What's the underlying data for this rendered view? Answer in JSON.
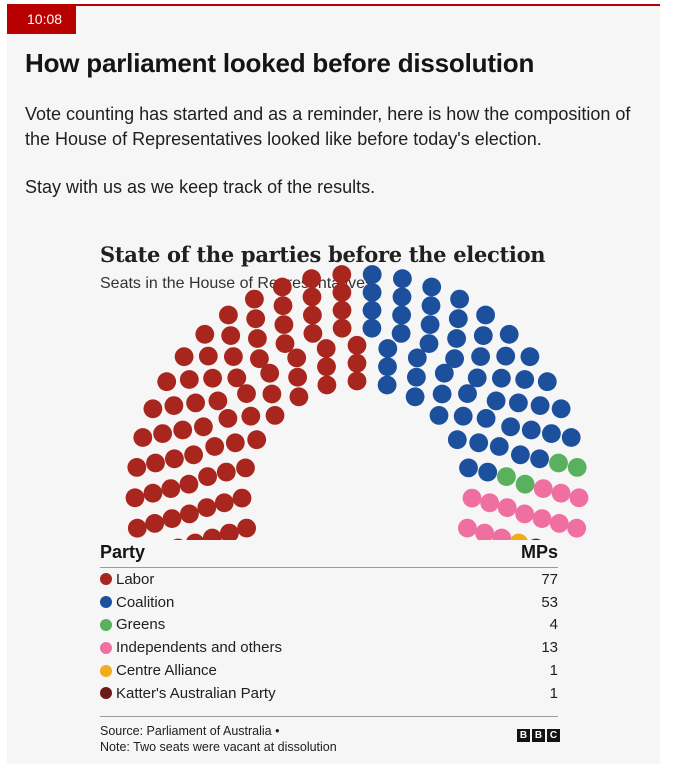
{
  "post": {
    "time": "10:08",
    "headline": "How parliament looked before dissolution",
    "paragraph1": "Vote counting has started and as a reminder, here is how the composition of the House of Representatives looked like before today's election.",
    "paragraph2": "Stay with us as we keep track of the results."
  },
  "chart_data": {
    "type": "parliament",
    "title": "State of the parties before the election",
    "subtitle": "Seats in the House of Representatives",
    "total_seats": 151,
    "legend_header": {
      "party": "Party",
      "mps": "MPs"
    },
    "series": [
      {
        "name": "Labor",
        "value": 77,
        "color": "#a8261e"
      },
      {
        "name": "Coalition",
        "value": 53,
        "color": "#1c4f9c"
      },
      {
        "name": "Greens",
        "value": 4,
        "color": "#5ab15d"
      },
      {
        "name": "Independents and others",
        "value": 13,
        "color": "#ef6fa1"
      },
      {
        "name": "Centre Alliance",
        "value": 1,
        "color": "#f0ac1a"
      },
      {
        "name": "Katter's Australian Party",
        "value": 1,
        "color": "#6e1a1a"
      }
    ],
    "vacant": {
      "value": 2,
      "color": "#ffffff"
    },
    "source": "Source: Parliament of Australia •",
    "note": "Note: Two seats were vacant at dissolution"
  },
  "logo": {
    "letters": [
      "B",
      "B",
      "C"
    ]
  }
}
